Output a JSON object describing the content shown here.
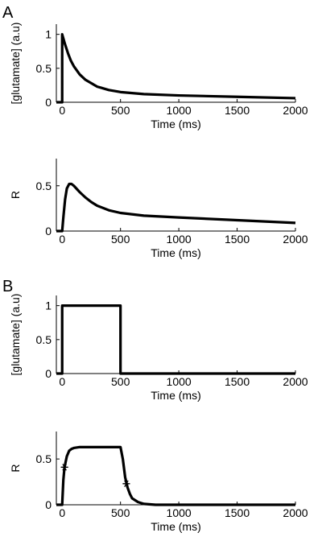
{
  "panels": [
    {
      "letter": "A"
    },
    {
      "letter": "B"
    }
  ],
  "chart_data": [
    {
      "type": "line",
      "panel": "A",
      "xlabel": "Time (ms)",
      "ylabel": "[glutamate] (a.u)",
      "xlim": [
        -50,
        2000
      ],
      "ylim": [
        0,
        1.15
      ],
      "xticks": [
        0,
        500,
        1000,
        1500,
        2000
      ],
      "yticks": [
        0,
        0.5,
        1
      ],
      "ytick_labels": [
        "0",
        "0.5",
        "1"
      ],
      "series": [
        {
          "values": [
            [
              -50,
              0
            ],
            [
              0,
              0
            ],
            [
              0,
              1
            ],
            [
              25,
              0.85
            ],
            [
              50,
              0.72
            ],
            [
              75,
              0.61
            ],
            [
              100,
              0.53
            ],
            [
              150,
              0.41
            ],
            [
              200,
              0.33
            ],
            [
              250,
              0.28
            ],
            [
              300,
              0.23
            ],
            [
              400,
              0.18
            ],
            [
              500,
              0.15
            ],
            [
              700,
              0.12
            ],
            [
              1000,
              0.1
            ],
            [
              1500,
              0.08
            ],
            [
              2000,
              0.06
            ]
          ]
        }
      ]
    },
    {
      "type": "line",
      "panel": "A",
      "xlabel": "Time (ms)",
      "ylabel": "R",
      "xlim": [
        -50,
        2000
      ],
      "ylim": [
        0,
        0.8
      ],
      "xticks": [
        0,
        500,
        1000,
        1500,
        2000
      ],
      "yticks": [
        0,
        0.5
      ],
      "ytick_labels": [
        "0",
        "0.5"
      ],
      "series": [
        {
          "values": [
            [
              -50,
              0
            ],
            [
              0,
              0
            ],
            [
              10,
              0.15
            ],
            [
              25,
              0.35
            ],
            [
              40,
              0.47
            ],
            [
              60,
              0.52
            ],
            [
              80,
              0.52
            ],
            [
              100,
              0.5
            ],
            [
              150,
              0.43
            ],
            [
              200,
              0.37
            ],
            [
              250,
              0.32
            ],
            [
              300,
              0.28
            ],
            [
              400,
              0.23
            ],
            [
              500,
              0.2
            ],
            [
              700,
              0.17
            ],
            [
              1000,
              0.15
            ],
            [
              1500,
              0.12
            ],
            [
              2000,
              0.09
            ]
          ]
        }
      ]
    },
    {
      "type": "line",
      "panel": "B",
      "xlabel": "Time (ms)",
      "ylabel": "[glutamate] (a.u)",
      "xlim": [
        -50,
        2000
      ],
      "ylim": [
        0,
        1.15
      ],
      "xticks": [
        0,
        500,
        1000,
        1500,
        2000
      ],
      "yticks": [
        0,
        0.5,
        1
      ],
      "ytick_labels": [
        "0",
        "0.5",
        "1"
      ],
      "series": [
        {
          "values": [
            [
              -50,
              0
            ],
            [
              0,
              0
            ],
            [
              0,
              1
            ],
            [
              500,
              1
            ],
            [
              500,
              0
            ],
            [
              2000,
              0
            ]
          ]
        }
      ]
    },
    {
      "type": "line",
      "panel": "B",
      "xlabel": "Time (ms)",
      "ylabel": "R",
      "xlim": [
        -50,
        2000
      ],
      "ylim": [
        0,
        0.8
      ],
      "xticks": [
        0,
        500,
        1000,
        1500,
        2000
      ],
      "yticks": [
        0,
        0.5
      ],
      "ytick_labels": [
        "0",
        "0.5"
      ],
      "series": [
        {
          "values": [
            [
              -50,
              0
            ],
            [
              0,
              0
            ],
            [
              10,
              0.27
            ],
            [
              20,
              0.41
            ],
            [
              40,
              0.53
            ],
            [
              60,
              0.59
            ],
            [
              80,
              0.61
            ],
            [
              100,
              0.62
            ],
            [
              150,
              0.63
            ],
            [
              500,
              0.63
            ],
            [
              520,
              0.5
            ],
            [
              540,
              0.3
            ],
            [
              560,
              0.19
            ],
            [
              580,
              0.12
            ],
            [
              600,
              0.07
            ],
            [
              650,
              0.03
            ],
            [
              700,
              0.01
            ],
            [
              800,
              0
            ],
            [
              2000,
              0
            ]
          ]
        }
      ],
      "markers": [
        [
          20,
          0.41
        ],
        [
          550,
          0.23
        ]
      ]
    }
  ]
}
